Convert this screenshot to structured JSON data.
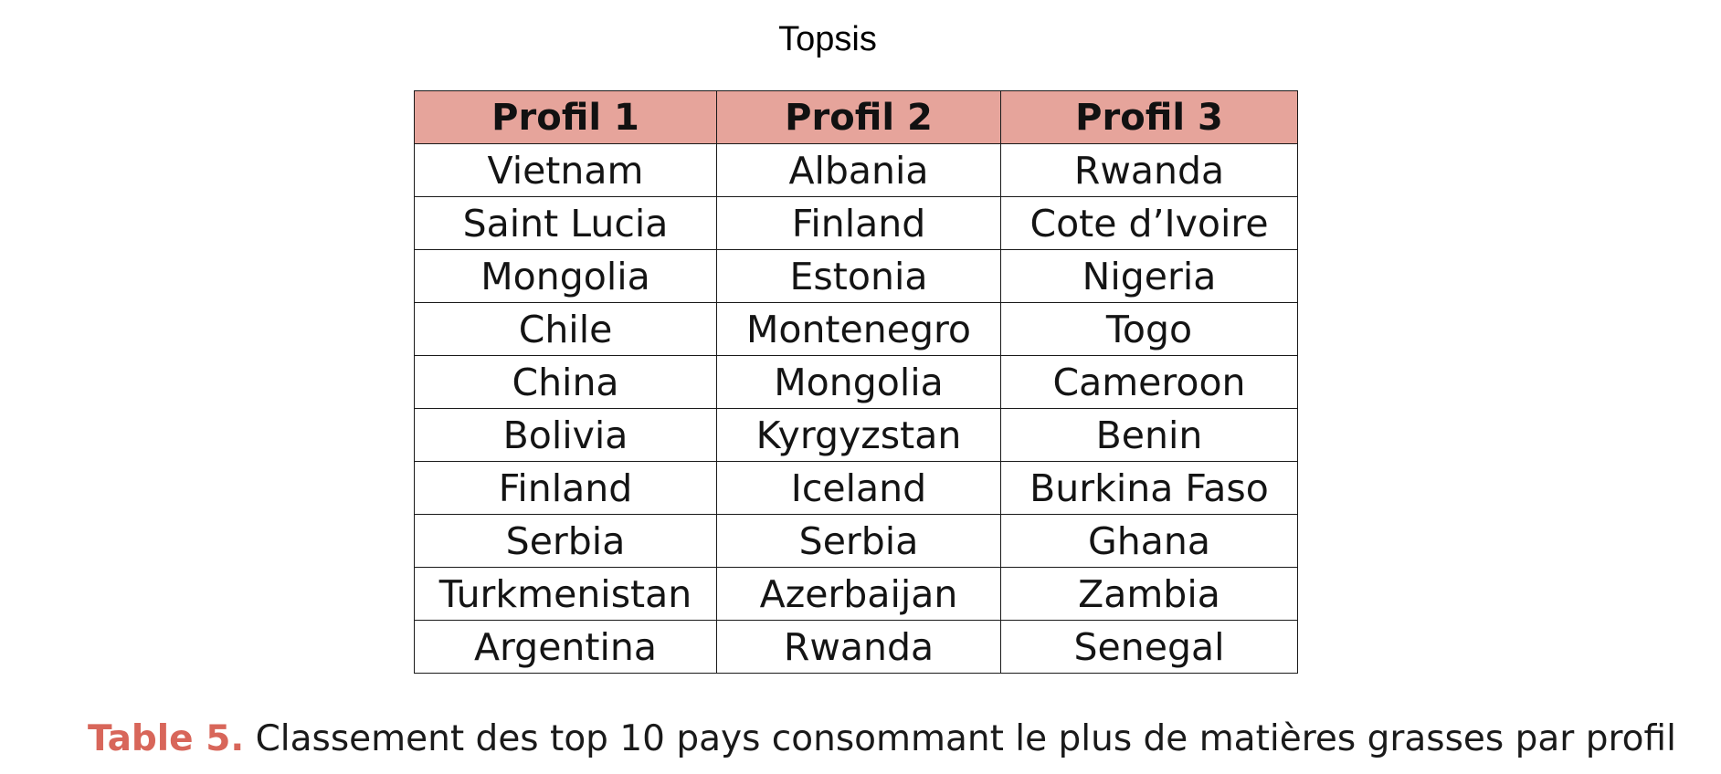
{
  "title": "Topsis",
  "table": {
    "headers": [
      "Profil 1",
      "Profil 2",
      "Profil 3"
    ],
    "rows": [
      [
        "Vietnam",
        "Albania",
        "Rwanda"
      ],
      [
        "Saint Lucia",
        "Finland",
        "Cote d’Ivoire"
      ],
      [
        "Mongolia",
        "Estonia",
        "Nigeria"
      ],
      [
        "Chile",
        "Montenegro",
        "Togo"
      ],
      [
        "China",
        "Mongolia",
        "Cameroon"
      ],
      [
        "Bolivia",
        "Kyrgyzstan",
        "Benin"
      ],
      [
        "Finland",
        "Iceland",
        "Burkina Faso"
      ],
      [
        "Serbia",
        "Serbia",
        "Ghana"
      ],
      [
        "Turkmenistan",
        "Azerbaijan",
        "Zambia"
      ],
      [
        "Argentina",
        "Rwanda",
        "Senegal"
      ]
    ]
  },
  "caption": {
    "label": "Table 5.",
    "text": " Classement des top 10 pays consommant le plus de matières grasses par profil"
  },
  "colors": {
    "header_background": "#e6a49b",
    "caption_label": "#d8665a",
    "border": "#1a1a1a"
  }
}
